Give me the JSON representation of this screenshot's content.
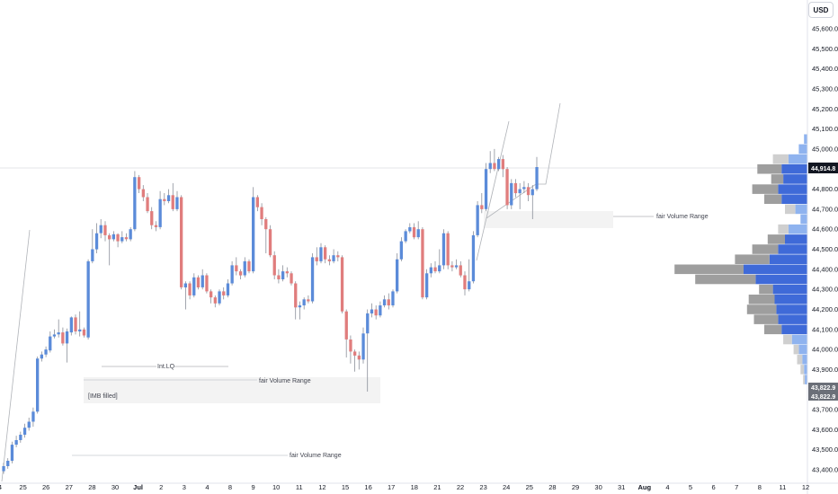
{
  "currency": "USD",
  "colors": {
    "up": "#5b8bd9",
    "down": "#e07d7d",
    "wick": "#8a8f99",
    "profile_blue": "#3f6ad8",
    "profile_light_blue": "#8fb3ef",
    "profile_grey": "#9e9e9e",
    "profile_light_grey": "#cfcfcf",
    "price_tag": "#131722",
    "grey_tag": "#6b6f78"
  },
  "price_labels": {
    "last": "44,914.8",
    "low_a": "43,822.9",
    "low_b": "43,822.9"
  },
  "annotations": {
    "int_lq": "Int.LQ",
    "fvr_upper": "fair Volume Range",
    "fvr_mid": "fair Volume Range",
    "fvr_lower": "fair Volume Range",
    "imb": "[IMB filled]"
  },
  "chart_data": {
    "type": "candlestick",
    "y_axis": {
      "ticks": [
        45600,
        45500,
        45400,
        45300,
        45200,
        45100,
        45000,
        44900,
        44800,
        44700,
        44600,
        44500,
        44400,
        44300,
        44200,
        44100,
        44000,
        43900,
        43800,
        43700,
        43600,
        43500,
        43400
      ],
      "tick_labels": [
        "45,600.0",
        "45,500.0",
        "45,400.0",
        "45,300.0",
        "45,200.0",
        "45,100.0",
        "45,000.0",
        "44,900.0",
        "44,800.0",
        "44,700.0",
        "44,600.0",
        "44,500.0",
        "44,400.0",
        "44,300.0",
        "44,200.0",
        "44,100.0",
        "44,000.0",
        "43,900.0",
        "43,800.0",
        "43,700.0",
        "43,600.0",
        "43,500.0",
        "43,400.0"
      ],
      "range": [
        43360,
        45680
      ]
    },
    "x_axis": {
      "tick_labels": [
        "4",
        "25",
        "26",
        "27",
        "28",
        "30",
        "Jul",
        "2",
        "3",
        "4",
        "8",
        "9",
        "10",
        "11",
        "12",
        "15",
        "16",
        "17",
        "18",
        "21",
        "22",
        "23",
        "24",
        "25",
        "28",
        "29",
        "30",
        "31",
        "Aug",
        "4",
        "5",
        "6",
        "7",
        "8",
        "11",
        "12"
      ]
    },
    "last_price": 44914.8,
    "candles": [
      [
        43393,
        43418,
        43380,
        43435
      ],
      [
        43418,
        43445,
        43405,
        43458
      ],
      [
        43445,
        43525,
        43432,
        43540
      ],
      [
        43525,
        43548,
        43512,
        43570
      ],
      [
        43548,
        43575,
        43535,
        43590
      ],
      [
        43575,
        43610,
        43560,
        43630
      ],
      [
        43610,
        43640,
        43595,
        43660
      ],
      [
        43640,
        43690,
        43615,
        43710
      ],
      [
        43690,
        43955,
        43680,
        43965
      ],
      [
        43955,
        43975,
        43940,
        43990
      ],
      [
        43975,
        44000,
        43962,
        44015
      ],
      [
        43995,
        44065,
        43985,
        44090
      ],
      [
        44065,
        44075,
        44055,
        44100
      ],
      [
        44075,
        44085,
        44060,
        44150
      ],
      [
        44085,
        44030,
        44020,
        44110
      ],
      [
        44030,
        44090,
        43935,
        44105
      ],
      [
        44085,
        44160,
        44070,
        44165
      ],
      [
        44160,
        44090,
        44075,
        44175
      ],
      [
        44090,
        44100,
        44065,
        44190
      ],
      [
        44100,
        44070,
        44060,
        44110
      ],
      [
        44060,
        44440,
        44050,
        44450
      ],
      [
        44440,
        44500,
        44430,
        44600
      ],
      [
        44500,
        44580,
        44480,
        44630
      ],
      [
        44580,
        44620,
        44555,
        44650
      ],
      [
        44620,
        44570,
        44540,
        44640
      ],
      [
        44570,
        44550,
        44420,
        44580
      ],
      [
        44550,
        44575,
        44540,
        44590
      ],
      [
        44575,
        44540,
        44510,
        44580
      ],
      [
        44540,
        44560,
        44530,
        44590
      ],
      [
        44560,
        44550,
        44540,
        44580
      ],
      [
        44550,
        44600,
        44540,
        44610
      ],
      [
        44600,
        44860,
        44590,
        44890
      ],
      [
        44860,
        44800,
        44780,
        44870
      ],
      [
        44800,
        44760,
        44740,
        44820
      ],
      [
        44760,
        44690,
        44680,
        44780
      ],
      [
        44690,
        44620,
        44600,
        44710
      ],
      [
        44620,
        44610,
        44590,
        44640
      ],
      [
        44610,
        44750,
        44600,
        44790
      ],
      [
        44750,
        44740,
        44720,
        44780
      ],
      [
        44740,
        44770,
        44730,
        44800
      ],
      [
        44770,
        44700,
        44690,
        44830
      ],
      [
        44700,
        44760,
        44690,
        44790
      ],
      [
        44760,
        44310,
        44300,
        44770
      ],
      [
        44310,
        44330,
        44200,
        44340
      ],
      [
        44330,
        44270,
        44250,
        44340
      ],
      [
        44270,
        44360,
        44260,
        44380
      ],
      [
        44360,
        44310,
        44300,
        44370
      ],
      [
        44310,
        44370,
        44300,
        44400
      ],
      [
        44370,
        44290,
        44280,
        44380
      ],
      [
        44290,
        44260,
        44230,
        44300
      ],
      [
        44260,
        44230,
        44210,
        44270
      ],
      [
        44230,
        44290,
        44220,
        44300
      ],
      [
        44290,
        44270,
        44250,
        44310
      ],
      [
        44270,
        44330,
        44260,
        44350
      ],
      [
        44330,
        44420,
        44320,
        44440
      ],
      [
        44420,
        44390,
        44370,
        44460
      ],
      [
        44390,
        44370,
        44350,
        44400
      ],
      [
        44370,
        44440,
        44360,
        44460
      ],
      [
        44440,
        44390,
        44380,
        44450
      ],
      [
        44390,
        44760,
        44380,
        44810
      ],
      [
        44760,
        44710,
        44690,
        44770
      ],
      [
        44710,
        44650,
        44620,
        44730
      ],
      [
        44650,
        44600,
        44480,
        44660
      ],
      [
        44600,
        44470,
        44460,
        44620
      ],
      [
        44470,
        44370,
        44350,
        44490
      ],
      [
        44370,
        44350,
        44330,
        44400
      ],
      [
        44350,
        44390,
        44340,
        44420
      ],
      [
        44390,
        44380,
        44360,
        44410
      ],
      [
        44380,
        44330,
        44320,
        44390
      ],
      [
        44330,
        44210,
        44150,
        44340
      ],
      [
        44210,
        44220,
        44150,
        44240
      ],
      [
        44220,
        44250,
        44200,
        44260
      ],
      [
        44250,
        44240,
        44230,
        44270
      ],
      [
        44240,
        44460,
        44230,
        44480
      ],
      [
        44460,
        44440,
        44420,
        44510
      ],
      [
        44440,
        44510,
        44430,
        44530
      ],
      [
        44510,
        44450,
        44430,
        44520
      ],
      [
        44450,
        44440,
        44420,
        44470
      ],
      [
        44440,
        44470,
        44430,
        44500
      ],
      [
        44470,
        44460,
        44440,
        44490
      ],
      [
        44460,
        44190,
        44180,
        44470
      ],
      [
        44190,
        44050,
        43960,
        44200
      ],
      [
        44050,
        43990,
        43930,
        44070
      ],
      [
        43990,
        43970,
        43890,
        44000
      ],
      [
        43970,
        43950,
        43900,
        43990
      ],
      [
        43950,
        44080,
        43930,
        44110
      ],
      [
        44080,
        44180,
        43790,
        44200
      ],
      [
        44180,
        44200,
        44160,
        44230
      ],
      [
        44200,
        44170,
        44150,
        44220
      ],
      [
        44170,
        44220,
        44160,
        44240
      ],
      [
        44220,
        44250,
        44210,
        44270
      ],
      [
        44250,
        44220,
        44200,
        44280
      ],
      [
        44220,
        44290,
        44210,
        44300
      ],
      [
        44290,
        44450,
        44280,
        44480
      ],
      [
        44450,
        44540,
        44440,
        44560
      ],
      [
        44540,
        44590,
        44530,
        44600
      ],
      [
        44590,
        44610,
        44580,
        44630
      ],
      [
        44610,
        44560,
        44550,
        44630
      ],
      [
        44560,
        44600,
        44550,
        44640
      ],
      [
        44600,
        44260,
        44250,
        44610
      ],
      [
        44260,
        44380,
        44250,
        44400
      ],
      [
        44380,
        44410,
        44360,
        44430
      ],
      [
        44410,
        44390,
        44380,
        44440
      ],
      [
        44390,
        44420,
        44380,
        44500
      ],
      [
        44420,
        44580,
        44400,
        44600
      ],
      [
        44580,
        44420,
        44400,
        44590
      ],
      [
        44420,
        44410,
        44390,
        44440
      ],
      [
        44410,
        44420,
        44400,
        44450
      ],
      [
        44420,
        44370,
        44360,
        44440
      ],
      [
        44370,
        44300,
        44270,
        44390
      ],
      [
        44300,
        44340,
        44290,
        44450
      ],
      [
        44340,
        44570,
        44330,
        44590
      ],
      [
        44570,
        44720,
        44560,
        44740
      ],
      [
        44720,
        44700,
        44680,
        44780
      ],
      [
        44700,
        44900,
        44690,
        44930
      ],
      [
        44900,
        44930,
        44880,
        44990
      ],
      [
        44930,
        44900,
        44890,
        45000
      ],
      [
        44900,
        44950,
        44890,
        44960
      ],
      [
        44950,
        44900,
        44860,
        44970
      ],
      [
        44900,
        44720,
        44700,
        44910
      ],
      [
        44720,
        44830,
        44700,
        44850
      ],
      [
        44830,
        44780,
        44760,
        44850
      ],
      [
        44780,
        44800,
        44700,
        44830
      ],
      [
        44800,
        44810,
        44780,
        44840
      ],
      [
        44810,
        44770,
        44740,
        44830
      ],
      [
        44770,
        44800,
        44650,
        44820
      ],
      [
        44800,
        44910,
        44790,
        44960
      ]
    ],
    "volume_profile": [
      {
        "price": 45050,
        "buy": 4,
        "sell": 0
      },
      {
        "price": 45000,
        "buy": 10,
        "sell": 0
      },
      {
        "price": 44950,
        "buy": 22,
        "sell": 18
      },
      {
        "price": 44900,
        "buy": 30,
        "sell": 28
      },
      {
        "price": 44850,
        "buy": 28,
        "sell": 14
      },
      {
        "price": 44800,
        "buy": 34,
        "sell": 30
      },
      {
        "price": 44750,
        "buy": 30,
        "sell": 20
      },
      {
        "price": 44700,
        "buy": 14,
        "sell": 12
      },
      {
        "price": 44650,
        "buy": 8,
        "sell": 0
      },
      {
        "price": 44600,
        "buy": 22,
        "sell": 12
      },
      {
        "price": 44550,
        "buy": 26,
        "sell": 20
      },
      {
        "price": 44500,
        "buy": 34,
        "sell": 30
      },
      {
        "price": 44450,
        "buy": 44,
        "sell": 40
      },
      {
        "price": 44400,
        "buy": 74,
        "sell": 80
      },
      {
        "price": 44350,
        "buy": 60,
        "sell": 70
      },
      {
        "price": 44300,
        "buy": 40,
        "sell": 16
      },
      {
        "price": 44250,
        "buy": 38,
        "sell": 30
      },
      {
        "price": 44200,
        "buy": 36,
        "sell": 34
      },
      {
        "price": 44150,
        "buy": 34,
        "sell": 28
      },
      {
        "price": 44100,
        "buy": 30,
        "sell": 20
      },
      {
        "price": 44050,
        "buy": 18,
        "sell": 10
      },
      {
        "price": 44000,
        "buy": 10,
        "sell": 6
      },
      {
        "price": 43950,
        "buy": 6,
        "sell": 6
      },
      {
        "price": 43900,
        "buy": 4,
        "sell": 4
      },
      {
        "price": 43850,
        "buy": 3,
        "sell": 2
      }
    ]
  }
}
